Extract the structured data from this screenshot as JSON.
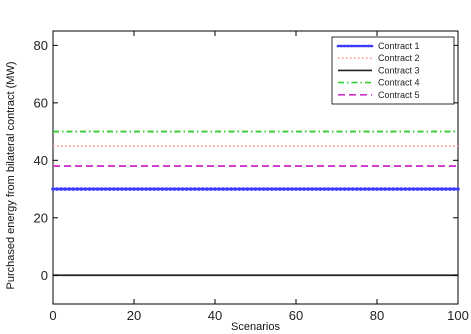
{
  "chart_data": {
    "type": "line",
    "title": "",
    "xlabel": "Scenarios",
    "ylabel": "Purchased energy from bilateral contract (MW)",
    "xlim": [
      0,
      100
    ],
    "ylim": [
      -10,
      85
    ],
    "xticks": [
      0,
      20,
      40,
      60,
      80,
      100
    ],
    "yticks": [
      0,
      20,
      40,
      60,
      80
    ],
    "x": [
      0,
      100
    ],
    "grid": false,
    "legend_position": "top-right",
    "series": [
      {
        "name": "Contract 1",
        "values": [
          30,
          30
        ],
        "color": "#3b3bff",
        "style": "solid-marker"
      },
      {
        "name": "Contract 2",
        "values": [
          45,
          45
        ],
        "color": "#ff9999",
        "style": "dotted"
      },
      {
        "name": "Contract 3",
        "values": [
          0,
          0
        ],
        "color": "#222222",
        "style": "solid"
      },
      {
        "name": "Contract 4",
        "values": [
          50,
          50
        ],
        "color": "#33cc33",
        "style": "dashdot"
      },
      {
        "name": "Contract 5",
        "values": [
          38,
          38
        ],
        "color": "#cc33cc",
        "style": "dashed"
      }
    ]
  }
}
